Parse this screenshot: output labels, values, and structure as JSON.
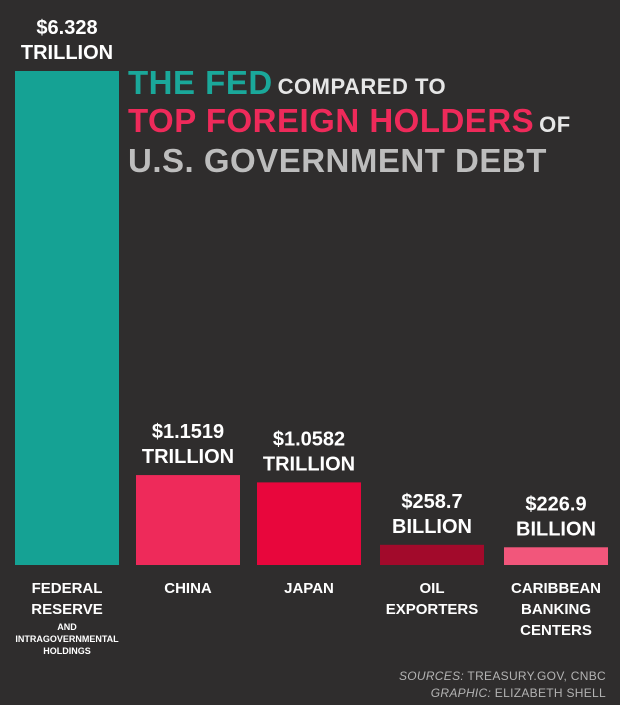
{
  "title": {
    "part1": "THE FED",
    "part2": "COMPARED TO",
    "part3": "TOP FOREIGN HOLDERS",
    "part4": "OF",
    "part5": "U.S. GOVERNMENT DEBT"
  },
  "colors": {
    "background": "#2f2d2d",
    "fed": "#15a294",
    "china": "#ee2a5a",
    "japan": "#e8063c",
    "oil": "#a20a2b",
    "caribbean": "#f2567b",
    "title_fed": "#1aa89a",
    "title_foreign": "#ee2a5a",
    "title_debt": "#bdbdbd"
  },
  "chart_data": {
    "type": "bar",
    "unit": "USD",
    "categories": [
      "FEDERAL RESERVE AND INTRAGOVERNMENTAL HOLDINGS",
      "CHINA",
      "JAPAN",
      "OIL EXPORTERS",
      "CARIBBEAN BANKING CENTERS"
    ],
    "values": [
      6328,
      1151.9,
      1058.2,
      258.7,
      226.9
    ],
    "value_unit": "billion USD",
    "bars": [
      {
        "label_lines": [
          "FEDERAL",
          "RESERVE"
        ],
        "sublabel_lines": [
          "AND",
          "INTRAGOVERNMENTAL",
          "HOLDINGS"
        ],
        "value_label_lines": [
          "$6.328",
          "TRILLION"
        ],
        "color_key": "fed"
      },
      {
        "label_lines": [
          "CHINA"
        ],
        "sublabel_lines": [],
        "value_label_lines": [
          "$1.1519",
          "TRILLION"
        ],
        "color_key": "china"
      },
      {
        "label_lines": [
          "JAPAN"
        ],
        "sublabel_lines": [],
        "value_label_lines": [
          "$1.0582",
          "TRILLION"
        ],
        "color_key": "japan"
      },
      {
        "label_lines": [
          "OIL",
          "EXPORTERS"
        ],
        "sublabel_lines": [],
        "value_label_lines": [
          "$258.7",
          "BILLION"
        ],
        "color_key": "oil"
      },
      {
        "label_lines": [
          "CARIBBEAN",
          "BANKING",
          "CENTERS"
        ],
        "sublabel_lines": [],
        "value_label_lines": [
          "$226.9",
          "BILLION"
        ],
        "color_key": "caribbean"
      }
    ],
    "xlabel": "",
    "ylabel": "",
    "grid": false,
    "legend": "none"
  },
  "credits": {
    "sources_lead": "SOURCES:",
    "sources_text": " TREASURY.GOV, CNBC",
    "graphic_lead": "GRAPHIC:",
    "graphic_text": " ELIZABETH SHELL"
  }
}
